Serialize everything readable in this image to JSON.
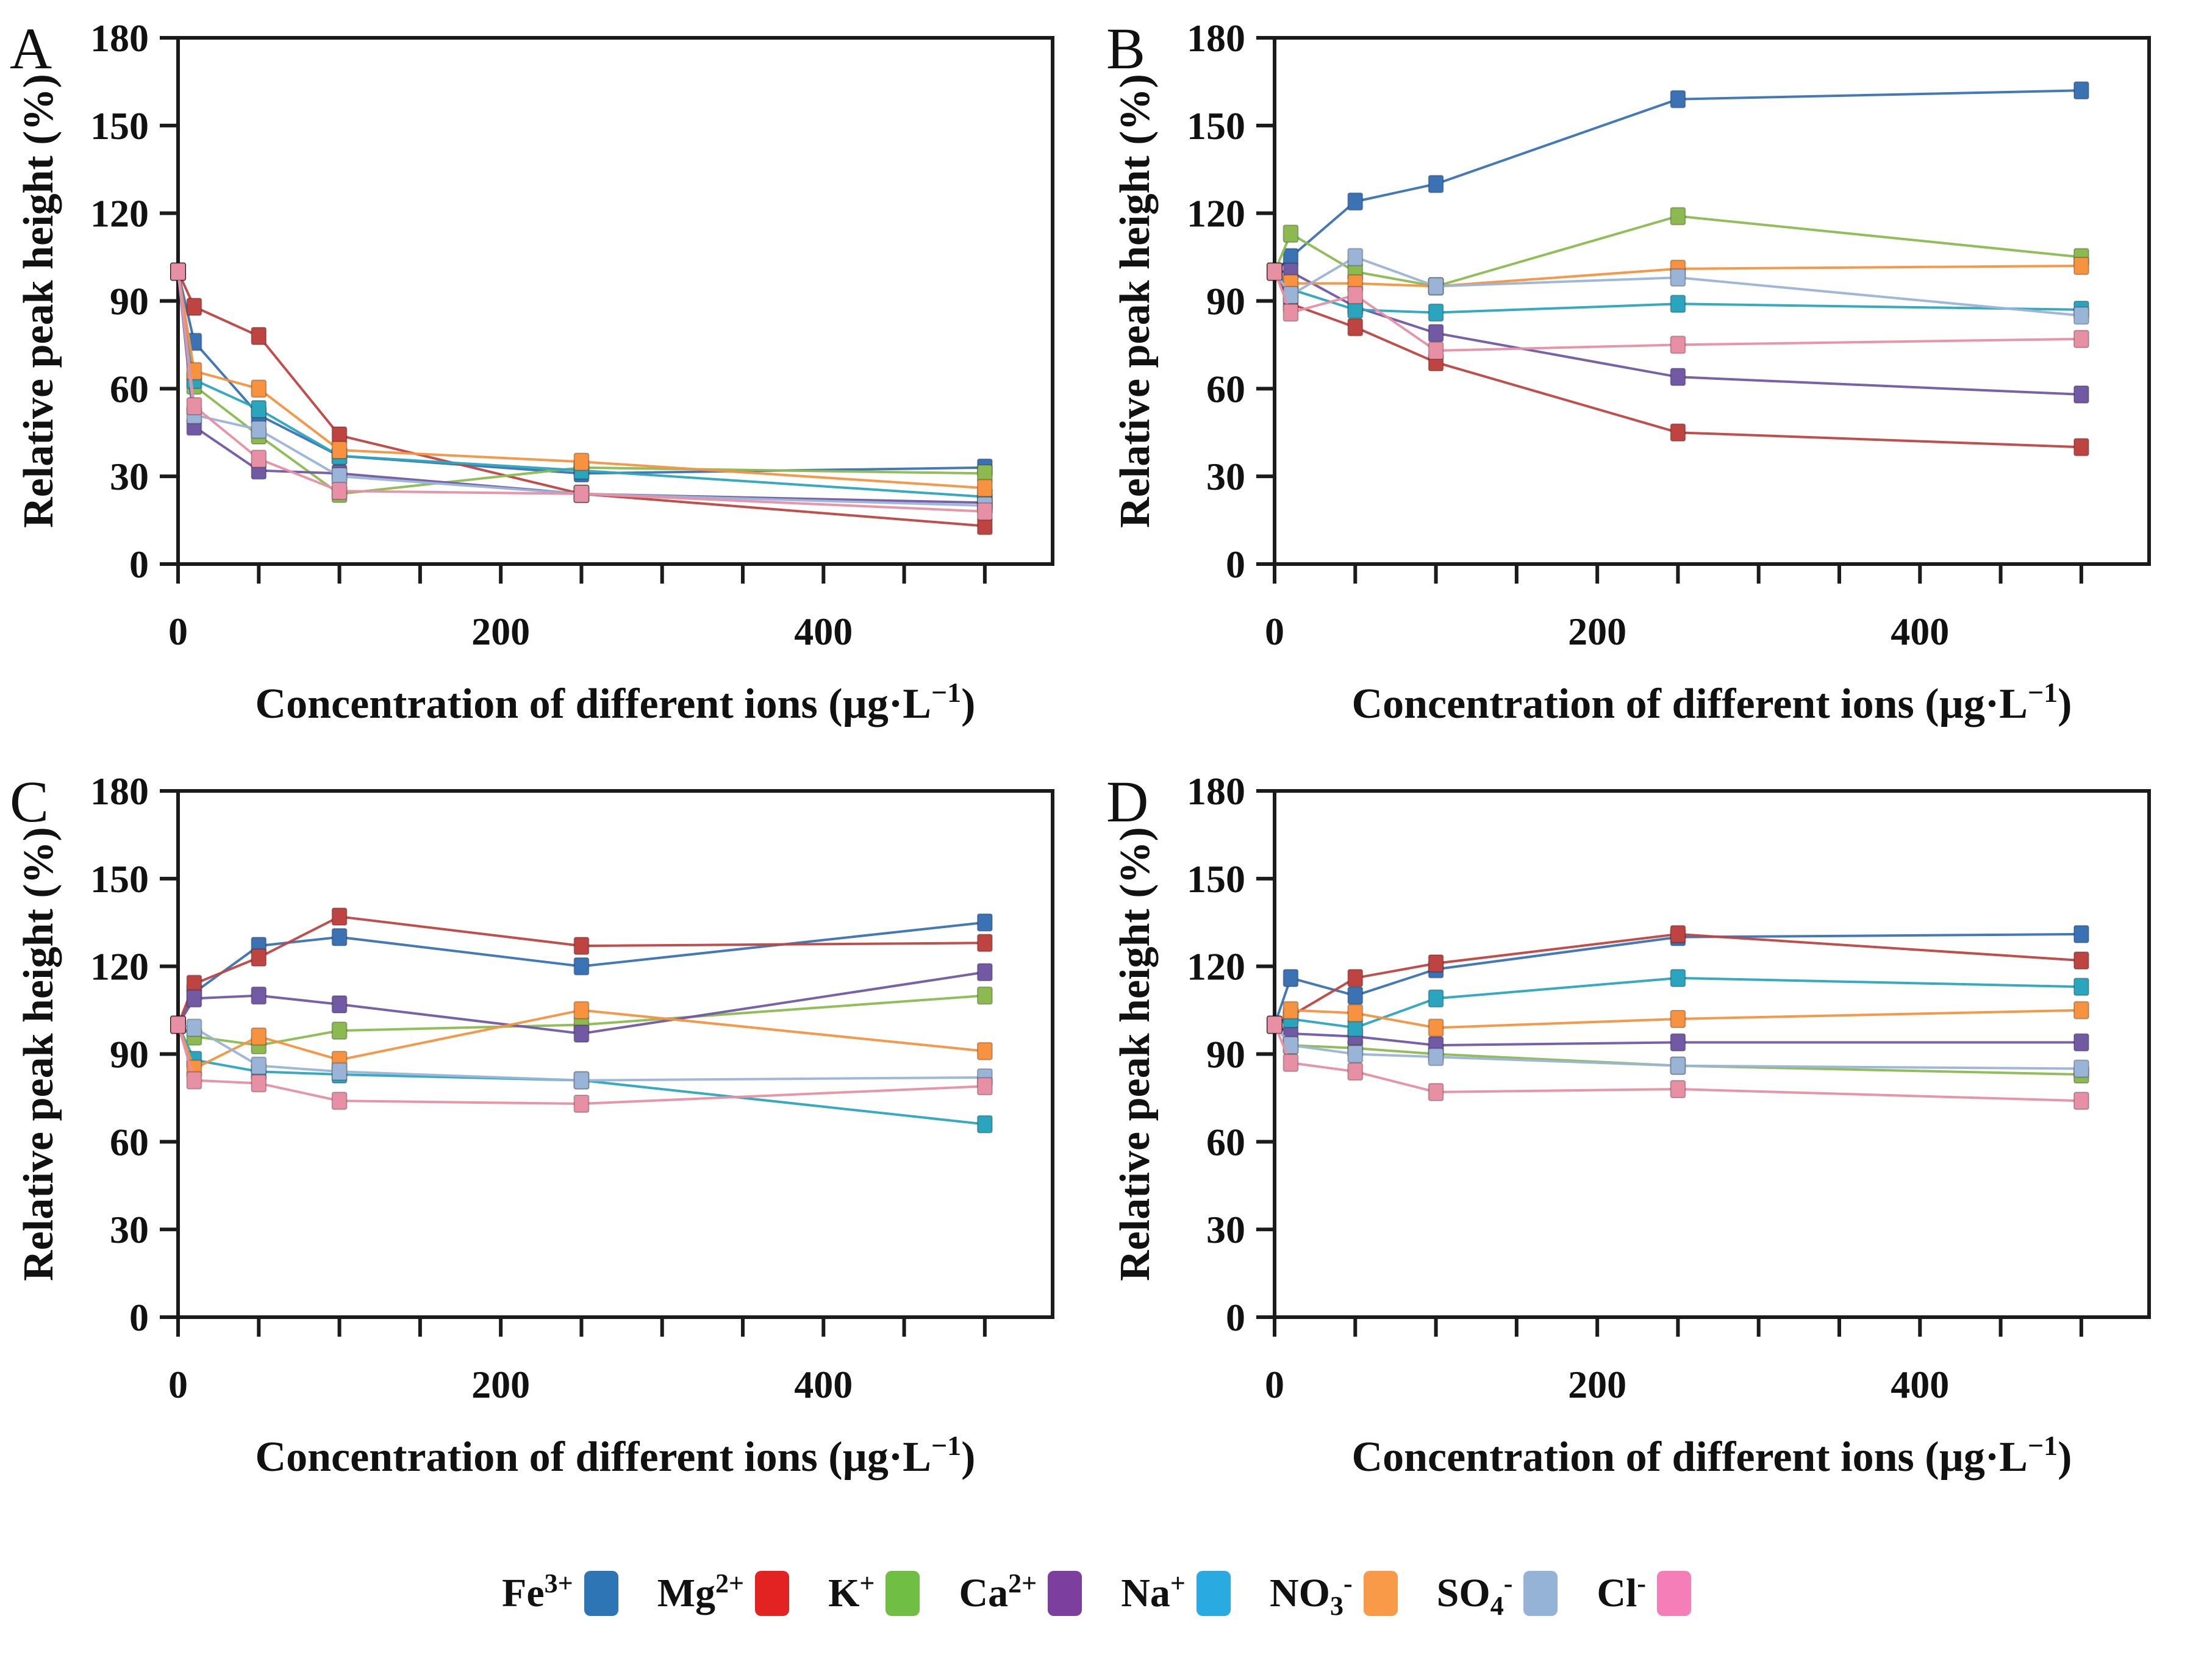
{
  "figure": {
    "x_values": [
      0,
      10,
      50,
      100,
      250,
      500
    ],
    "x_axis": {
      "max": 542,
      "minor_tick_step": 50,
      "ticks": [
        0,
        200,
        400
      ],
      "tick_labels": [
        "0",
        "200",
        "400"
      ],
      "label_pre": "Concentration of different ions (µg·L",
      "label_sup": "−1",
      "label_post": ")"
    },
    "y_axis": {
      "min": 0,
      "max": 180,
      "step": 30,
      "ticks": [
        0,
        30,
        60,
        90,
        120,
        150,
        180
      ],
      "label": "Relative peak height (%)"
    },
    "legend": [
      {
        "name": "Fe3+",
        "base": "Fe",
        "sub": "",
        "sup": "3+",
        "color": "#3A72B4",
        "legend_color": "#2E75B6"
      },
      {
        "name": "Mg2+",
        "base": "Mg",
        "sub": "",
        "sup": "2+",
        "color": "#BE4441",
        "legend_color": "#E32222"
      },
      {
        "name": "K+",
        "base": "K",
        "sub": "",
        "sup": "+",
        "color": "#8CBA51",
        "legend_color": "#70BF44"
      },
      {
        "name": "Ca2+",
        "base": "Ca",
        "sub": "",
        "sup": "2+",
        "color": "#7159A4",
        "legend_color": "#7C3F9E"
      },
      {
        "name": "Na+",
        "base": "Na",
        "sub": "",
        "sup": "+",
        "color": "#2BA5BE",
        "legend_color": "#29ABE2"
      },
      {
        "name": "NO3-",
        "base": "NO",
        "sub": "3",
        "sup": "-",
        "color": "#F69240",
        "legend_color": "#F89A47"
      },
      {
        "name": "SO4-",
        "base": "SO",
        "sub": "4",
        "sup": "-",
        "color": "#9AB4D8",
        "legend_color": "#95B3D7"
      },
      {
        "name": "Cl-",
        "base": "Cl",
        "sub": "",
        "sup": "-",
        "color": "#E78FA5",
        "legend_color": "#F57EB8"
      }
    ]
  },
  "chart_data": [
    {
      "panel": "A",
      "type": "line",
      "x": [
        0,
        10,
        50,
        100,
        250,
        500
      ],
      "xlabel": "Concentration of different ions (µg·L−1)",
      "ylabel": "Relative peak height (%)",
      "ylim": [
        0,
        180
      ],
      "xticks": [
        0,
        200,
        400
      ],
      "yticks": [
        0,
        30,
        60,
        90,
        120,
        150,
        180
      ],
      "series": [
        {
          "name": "Fe3+",
          "values": [
            100,
            76,
            51,
            37,
            31,
            33
          ]
        },
        {
          "name": "Mg2+",
          "values": [
            100,
            88,
            78,
            44,
            24,
            13
          ]
        },
        {
          "name": "K+",
          "values": [
            100,
            61,
            44,
            24,
            33,
            31
          ]
        },
        {
          "name": "Ca2+",
          "values": [
            100,
            47,
            32,
            31,
            24,
            21
          ]
        },
        {
          "name": "Na+",
          "values": [
            100,
            63,
            53,
            37,
            32,
            23
          ]
        },
        {
          "name": "NO3-",
          "values": [
            100,
            66,
            60,
            39,
            35,
            26
          ]
        },
        {
          "name": "SO4-",
          "values": [
            100,
            51,
            46,
            30,
            24,
            20
          ]
        },
        {
          "name": "Cl-",
          "values": [
            100,
            54,
            36,
            25,
            24,
            18
          ]
        }
      ]
    },
    {
      "panel": "B",
      "type": "line",
      "x": [
        0,
        10,
        50,
        100,
        250,
        500
      ],
      "xlabel": "Concentration of different ions (µg·L−1)",
      "ylabel": "Relative peak height (%)",
      "ylim": [
        0,
        180
      ],
      "xticks": [
        0,
        200,
        400
      ],
      "yticks": [
        0,
        30,
        60,
        90,
        120,
        150,
        180
      ],
      "series": [
        {
          "name": "Fe3+",
          "values": [
            100,
            105,
            124,
            130,
            159,
            162
          ]
        },
        {
          "name": "Mg2+",
          "values": [
            100,
            89,
            81,
            69,
            45,
            40
          ]
        },
        {
          "name": "K+",
          "values": [
            100,
            113,
            100,
            95,
            119,
            105
          ]
        },
        {
          "name": "Ca2+",
          "values": [
            100,
            100,
            88,
            79,
            64,
            58
          ]
        },
        {
          "name": "Na+",
          "values": [
            100,
            94,
            87,
            86,
            89,
            87
          ]
        },
        {
          "name": "NO3-",
          "values": [
            100,
            96,
            96,
            95,
            101,
            102
          ]
        },
        {
          "name": "SO4-",
          "values": [
            100,
            92,
            105,
            95,
            98,
            85
          ]
        },
        {
          "name": "Cl-",
          "values": [
            100,
            86,
            92,
            73,
            75,
            77
          ]
        }
      ]
    },
    {
      "panel": "C",
      "type": "line",
      "x": [
        0,
        10,
        50,
        100,
        250,
        500
      ],
      "xlabel": "Concentration of different ions (µg·L−1)",
      "ylabel": "Relative peak height (%)",
      "ylim": [
        0,
        180
      ],
      "xticks": [
        0,
        200,
        400
      ],
      "yticks": [
        0,
        30,
        60,
        90,
        120,
        150,
        180
      ],
      "series": [
        {
          "name": "Fe3+",
          "values": [
            100,
            111,
            127,
            130,
            120,
            135
          ]
        },
        {
          "name": "Mg2+",
          "values": [
            100,
            114,
            123,
            137,
            127,
            128
          ]
        },
        {
          "name": "K+",
          "values": [
            100,
            96,
            93,
            98,
            100,
            110
          ]
        },
        {
          "name": "Ca2+",
          "values": [
            100,
            109,
            110,
            107,
            97,
            118
          ]
        },
        {
          "name": "Na+",
          "values": [
            100,
            88,
            84,
            83,
            81,
            66
          ]
        },
        {
          "name": "NO3-",
          "values": [
            100,
            85,
            96,
            88,
            105,
            91
          ]
        },
        {
          "name": "SO4-",
          "values": [
            100,
            99,
            86,
            84,
            81,
            82
          ]
        },
        {
          "name": "Cl-",
          "values": [
            100,
            81,
            80,
            74,
            73,
            79
          ]
        }
      ]
    },
    {
      "panel": "D",
      "type": "line",
      "x": [
        0,
        10,
        50,
        100,
        250,
        500
      ],
      "xlabel": "Concentration of different ions (µg·L−1)",
      "ylabel": "Relative peak height (%)",
      "ylim": [
        0,
        180
      ],
      "xticks": [
        0,
        200,
        400
      ],
      "yticks": [
        0,
        30,
        60,
        90,
        120,
        150,
        180
      ],
      "series": [
        {
          "name": "Fe3+",
          "values": [
            100,
            116,
            110,
            119,
            130,
            131
          ]
        },
        {
          "name": "Mg2+",
          "values": [
            100,
            103,
            116,
            121,
            131,
            122
          ]
        },
        {
          "name": "K+",
          "values": [
            100,
            93,
            92,
            90,
            86,
            83
          ]
        },
        {
          "name": "Ca2+",
          "values": [
            100,
            97,
            96,
            93,
            94,
            94
          ]
        },
        {
          "name": "Na+",
          "values": [
            100,
            102,
            99,
            109,
            116,
            113
          ]
        },
        {
          "name": "NO3-",
          "values": [
            100,
            105,
            104,
            99,
            102,
            105
          ]
        },
        {
          "name": "SO4-",
          "values": [
            100,
            93,
            90,
            89,
            86,
            85
          ]
        },
        {
          "name": "Cl-",
          "values": [
            100,
            87,
            84,
            77,
            78,
            74
          ]
        }
      ]
    }
  ]
}
